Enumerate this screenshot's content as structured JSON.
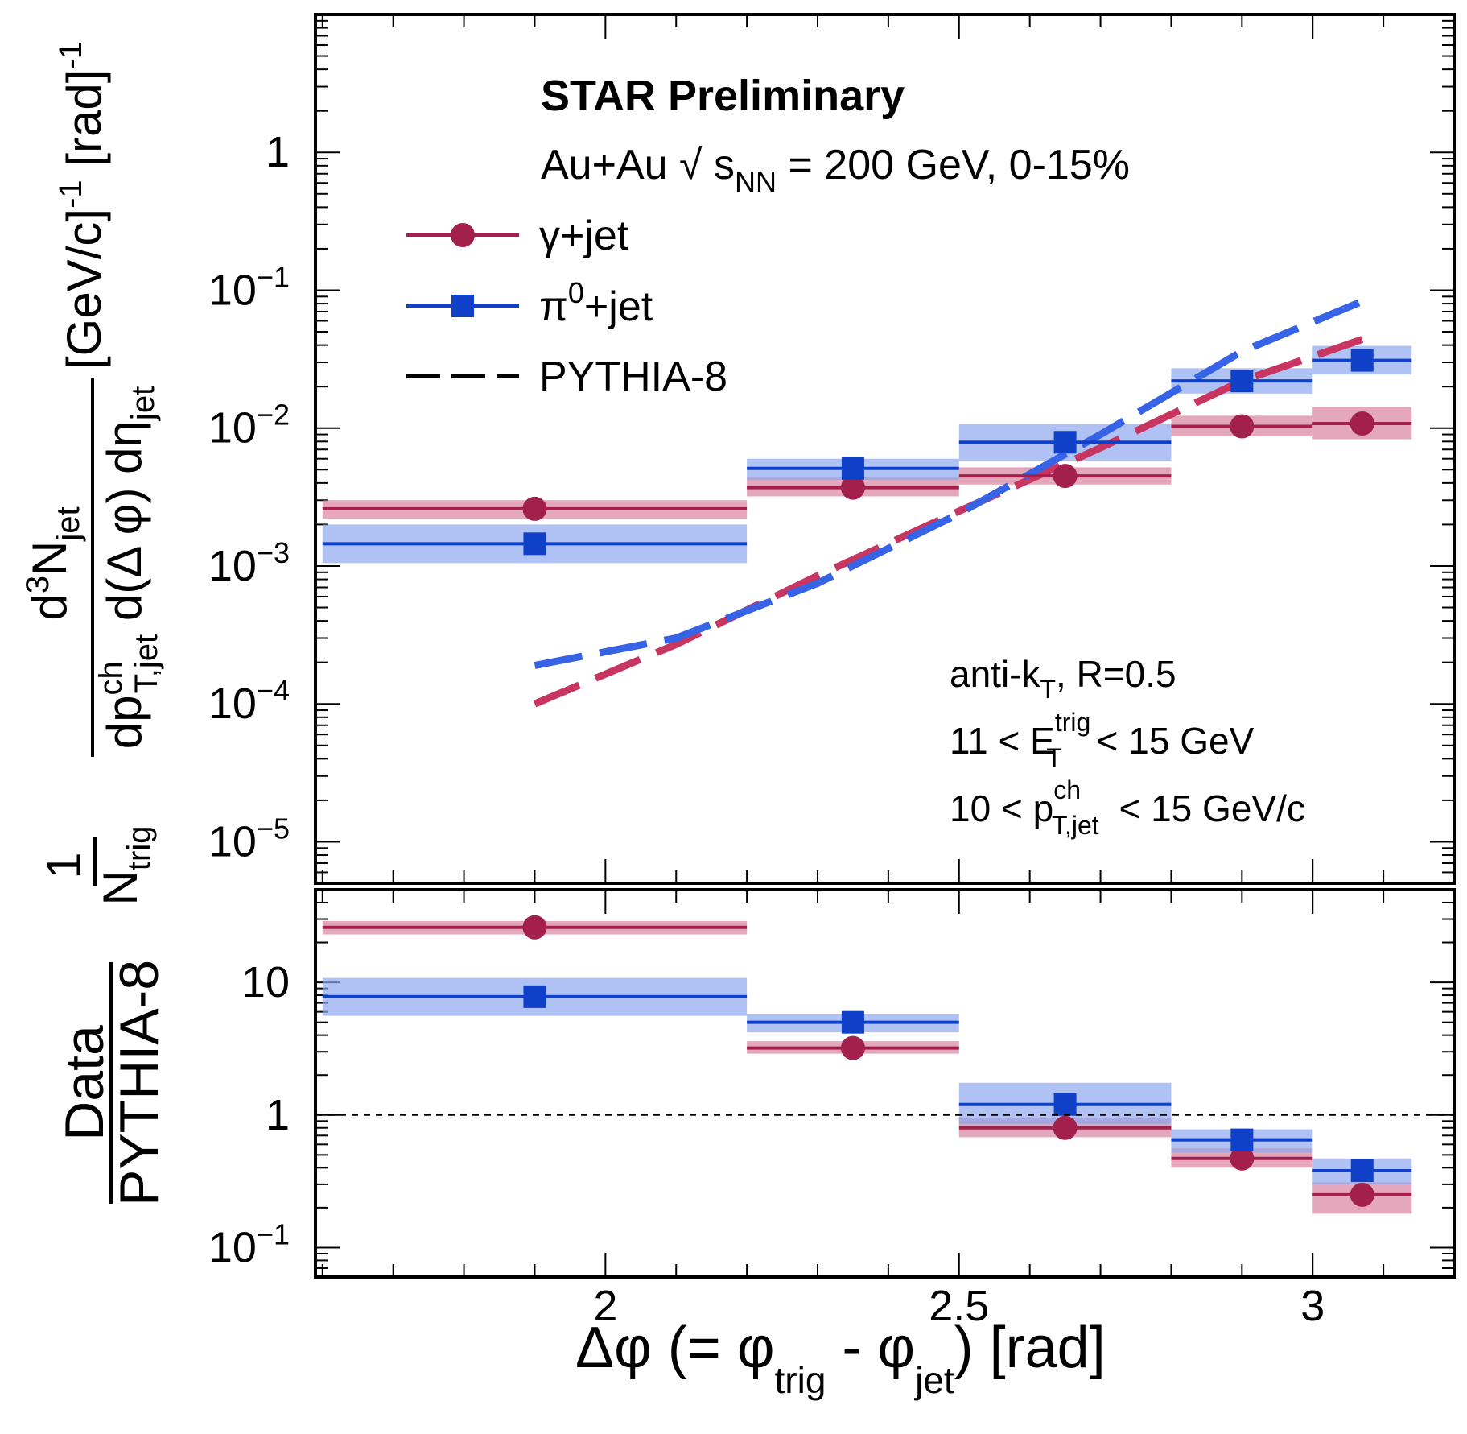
{
  "chart_data": [
    {
      "panel": "top",
      "type": "scatter",
      "title": "STAR Preliminary",
      "system": {
        "prefix": "Au+Au ",
        "sqrt": "√",
        "s": " s",
        "sub": "NN",
        "suffix": " = 200 GeV, 0-15%"
      },
      "ylabel": {
        "frac_num_d3N": "d",
        "frac_num_sup": "3",
        "frac_num_N": "N",
        "frac_num_sub": "jet",
        "frac_den_dp": "dp",
        "frac_den_sup": "ch",
        "frac_den_sub": "T,jet",
        "frac_den_rest": " d(Δ φ) dη",
        "frac_den_eta_sub": "jet",
        "units": "[GeV/c]",
        "units_sup": "-1",
        "units2": " [rad]",
        "units2_sup": "-1",
        "pref_one": "1",
        "pref_N": "N",
        "pref_sub": "trig"
      },
      "yscale": "log",
      "ylim": [
        5e-06,
        10
      ],
      "xlim": [
        1.59,
        3.2
      ],
      "yticks": [
        {
          "value": 1,
          "base": "1",
          "exp": ""
        },
        {
          "value": 0.1,
          "base": "10",
          "exp": "−1"
        },
        {
          "value": 0.01,
          "base": "10",
          "exp": "−2"
        },
        {
          "value": 0.001,
          "base": "10",
          "exp": "−3"
        },
        {
          "value": 0.0001,
          "base": "10",
          "exp": "−4"
        },
        {
          "value": 1e-05,
          "base": "10",
          "exp": "−5"
        }
      ],
      "series": [
        {
          "name": "γ+jet",
          "marker": "circle",
          "color": "#a31f4c",
          "band_color": "#d9829f",
          "points": [
            {
              "x": 1.9,
              "xlo": 1.6,
              "xhi": 2.2,
              "y": 0.0026,
              "ylo": 0.0022,
              "yhi": 0.003
            },
            {
              "x": 2.35,
              "xlo": 2.2,
              "xhi": 2.5,
              "y": 0.0037,
              "ylo": 0.0032,
              "yhi": 0.0044
            },
            {
              "x": 2.65,
              "xlo": 2.5,
              "xhi": 2.8,
              "y": 0.0045,
              "ylo": 0.0039,
              "yhi": 0.0052
            },
            {
              "x": 2.9,
              "xlo": 2.8,
              "xhi": 3.0,
              "y": 0.0103,
              "ylo": 0.0087,
              "yhi": 0.0123
            },
            {
              "x": 3.07,
              "xlo": 3.0,
              "xhi": 3.14,
              "y": 0.0108,
              "ylo": 0.0083,
              "yhi": 0.0142
            }
          ]
        },
        {
          "name": "π⁰+jet",
          "marker": "square",
          "color": "#1140c8",
          "band_color": "#8fa8f0",
          "points": [
            {
              "x": 1.9,
              "xlo": 1.6,
              "xhi": 2.2,
              "y": 0.00145,
              "ylo": 0.00105,
              "yhi": 0.002
            },
            {
              "x": 2.35,
              "xlo": 2.2,
              "xhi": 2.5,
              "y": 0.0051,
              "ylo": 0.0042,
              "yhi": 0.006
            },
            {
              "x": 2.65,
              "xlo": 2.5,
              "xhi": 2.8,
              "y": 0.0079,
              "ylo": 0.0058,
              "yhi": 0.0107
            },
            {
              "x": 2.9,
              "xlo": 2.8,
              "xhi": 3.0,
              "y": 0.022,
              "ylo": 0.0178,
              "yhi": 0.0272
            },
            {
              "x": 3.07,
              "xlo": 3.0,
              "xhi": 3.14,
              "y": 0.031,
              "ylo": 0.0245,
              "yhi": 0.0395
            }
          ]
        }
      ],
      "pythia": [
        {
          "name": "PYTHIA-8 γ+jet",
          "color": "#c83560",
          "x": [
            1.9,
            2.1,
            2.3,
            2.5,
            2.7,
            2.9,
            3.07
          ],
          "y": [
            0.0001,
            0.00027,
            0.00085,
            0.0025,
            0.0072,
            0.022,
            0.044
          ]
        },
        {
          "name": "PYTHIA-8 π⁰+jet",
          "color": "#3763e6",
          "x": [
            1.9,
            2.1,
            2.3,
            2.5,
            2.7,
            2.9,
            3.07
          ],
          "y": [
            0.00019,
            0.0003,
            0.00075,
            0.0024,
            0.009,
            0.036,
            0.083
          ]
        }
      ],
      "legend": [
        {
          "label": "γ+jet",
          "kind": "circle",
          "color": "#a31f4c"
        },
        {
          "label": "π",
          "sup": "0",
          "rest": "+jet",
          "kind": "square",
          "color": "#1140c8"
        },
        {
          "label": "PYTHIA-8",
          "kind": "dash",
          "color": "#000000"
        }
      ],
      "annotations": {
        "algo": "anti-k",
        "algo_sub": "T",
        "algo_rest": ", R=0.5",
        "et_pre": "11 < E",
        "et_sup": "trig",
        "et_sub": "T",
        "et_post": " < 15 GeV",
        "pt_pre": "10 < p",
        "pt_sup": "ch",
        "pt_sub": "T,jet",
        "pt_post": " < 15 GeV/c"
      }
    },
    {
      "panel": "bottom",
      "type": "scatter",
      "ylabel": {
        "num": "Data",
        "den": "PYTHIA-8"
      },
      "xlabel": {
        "delta_phi": "Δφ (= φ",
        "trig_sub": "trig",
        "mid": " - φ",
        "jet_sub": "jet",
        "end": ") [rad]"
      },
      "yscale": "log",
      "ylim": [
        0.06,
        50
      ],
      "xlim": [
        1.59,
        3.2
      ],
      "xticks": [
        {
          "value": 2,
          "label": "2"
        },
        {
          "value": 2.5,
          "label": "2.5"
        },
        {
          "value": 3,
          "label": "3"
        }
      ],
      "yticks": [
        {
          "value": 10,
          "base": "10",
          "exp": ""
        },
        {
          "value": 1,
          "base": "1",
          "exp": ""
        },
        {
          "value": 0.1,
          "base": "10",
          "exp": "−1"
        }
      ],
      "reference_line": 1,
      "series": [
        {
          "name": "γ+jet",
          "marker": "circle",
          "color": "#a31f4c",
          "band_color": "#d9829f",
          "points": [
            {
              "x": 1.9,
              "xlo": 1.6,
              "xhi": 2.2,
              "y": 26,
              "ylo": 23,
              "yhi": 29
            },
            {
              "x": 2.35,
              "xlo": 2.2,
              "xhi": 2.5,
              "y": 3.2,
              "ylo": 2.9,
              "yhi": 3.6
            },
            {
              "x": 2.65,
              "xlo": 2.5,
              "xhi": 2.8,
              "y": 0.8,
              "ylo": 0.68,
              "yhi": 0.95
            },
            {
              "x": 2.9,
              "xlo": 2.8,
              "xhi": 3.0,
              "y": 0.47,
              "ylo": 0.4,
              "yhi": 0.56
            },
            {
              "x": 3.07,
              "xlo": 3.0,
              "xhi": 3.14,
              "y": 0.25,
              "ylo": 0.18,
              "yhi": 0.31
            }
          ]
        },
        {
          "name": "π⁰+jet",
          "marker": "square",
          "color": "#1140c8",
          "band_color": "#8fa8f0",
          "points": [
            {
              "x": 1.9,
              "xlo": 1.6,
              "xhi": 2.2,
              "y": 7.8,
              "ylo": 5.6,
              "yhi": 10.8
            },
            {
              "x": 2.35,
              "xlo": 2.2,
              "xhi": 2.5,
              "y": 5.0,
              "ylo": 4.2,
              "yhi": 5.8
            },
            {
              "x": 2.65,
              "xlo": 2.5,
              "xhi": 2.8,
              "y": 1.2,
              "ylo": 0.85,
              "yhi": 1.75
            },
            {
              "x": 2.9,
              "xlo": 2.8,
              "xhi": 3.0,
              "y": 0.65,
              "ylo": 0.52,
              "yhi": 0.78
            },
            {
              "x": 3.07,
              "xlo": 3.0,
              "xhi": 3.14,
              "y": 0.38,
              "ylo": 0.3,
              "yhi": 0.47
            }
          ]
        }
      ]
    }
  ]
}
